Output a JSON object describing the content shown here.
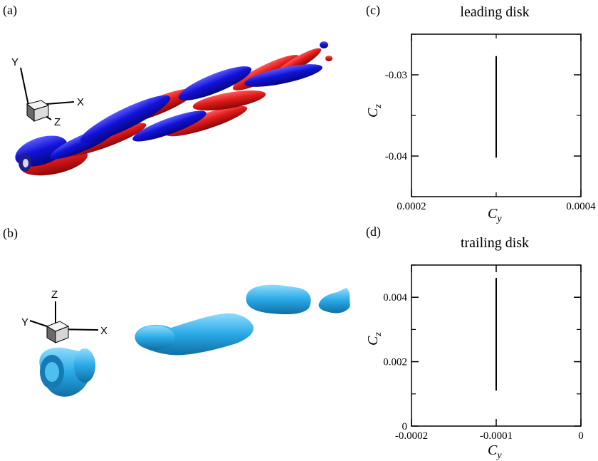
{
  "panels": {
    "a": {
      "label": "(a)",
      "axes": {
        "x": "X",
        "y": "Y",
        "z": "Z"
      }
    },
    "b": {
      "label": "(b)",
      "axes": {
        "x": "X",
        "y": "Y",
        "z": "Z"
      }
    },
    "c": {
      "label": "(c)"
    },
    "d": {
      "label": "(d)"
    }
  },
  "colors": {
    "red_structure": "#e01a1a",
    "blue_structure": "#1212d8",
    "cyan_structure": "#29a9e6",
    "line": "#000000"
  },
  "chart_data": [
    {
      "type": "line",
      "title": "leading disk",
      "xlabel": "C",
      "xlabel_sub": "y",
      "ylabel": "C",
      "ylabel_sub": "z",
      "xlim": [
        0.0002,
        0.0004
      ],
      "ylim": [
        -0.045,
        -0.025
      ],
      "xticks": [
        {
          "value": 0.0002,
          "label": "0.0002"
        },
        {
          "value": 0.0004,
          "label": "0.0004"
        }
      ],
      "yticks": [
        {
          "value": -0.03,
          "label": "-0.03"
        },
        {
          "value": -0.04,
          "label": "-0.04"
        }
      ],
      "x_minor": [
        0.0003
      ],
      "y_minor": [
        -0.025,
        -0.035,
        -0.045
      ],
      "series": [
        {
          "x": [
            0.0003,
            0.0003
          ],
          "y": [
            -0.0277,
            -0.0402
          ]
        }
      ]
    },
    {
      "type": "line",
      "title": "trailing disk",
      "xlabel": "C",
      "xlabel_sub": "y",
      "ylabel": "C",
      "ylabel_sub": "z",
      "xlim": [
        -0.0002,
        0
      ],
      "ylim": [
        0,
        0.005
      ],
      "xticks": [
        {
          "value": -0.0002,
          "label": "-0.0002"
        },
        {
          "value": -0.0001,
          "label": "-0.0001"
        },
        {
          "value": 0,
          "label": "0"
        }
      ],
      "yticks": [
        {
          "value": 0,
          "label": "0"
        },
        {
          "value": 0.002,
          "label": "0.002"
        },
        {
          "value": 0.004,
          "label": "0.004"
        }
      ],
      "x_minor": [],
      "y_minor": [
        0.001,
        0.003,
        0.005
      ],
      "series": [
        {
          "x": [
            -0.0001,
            -0.0001
          ],
          "y": [
            0.0011,
            0.0046
          ]
        }
      ]
    }
  ]
}
